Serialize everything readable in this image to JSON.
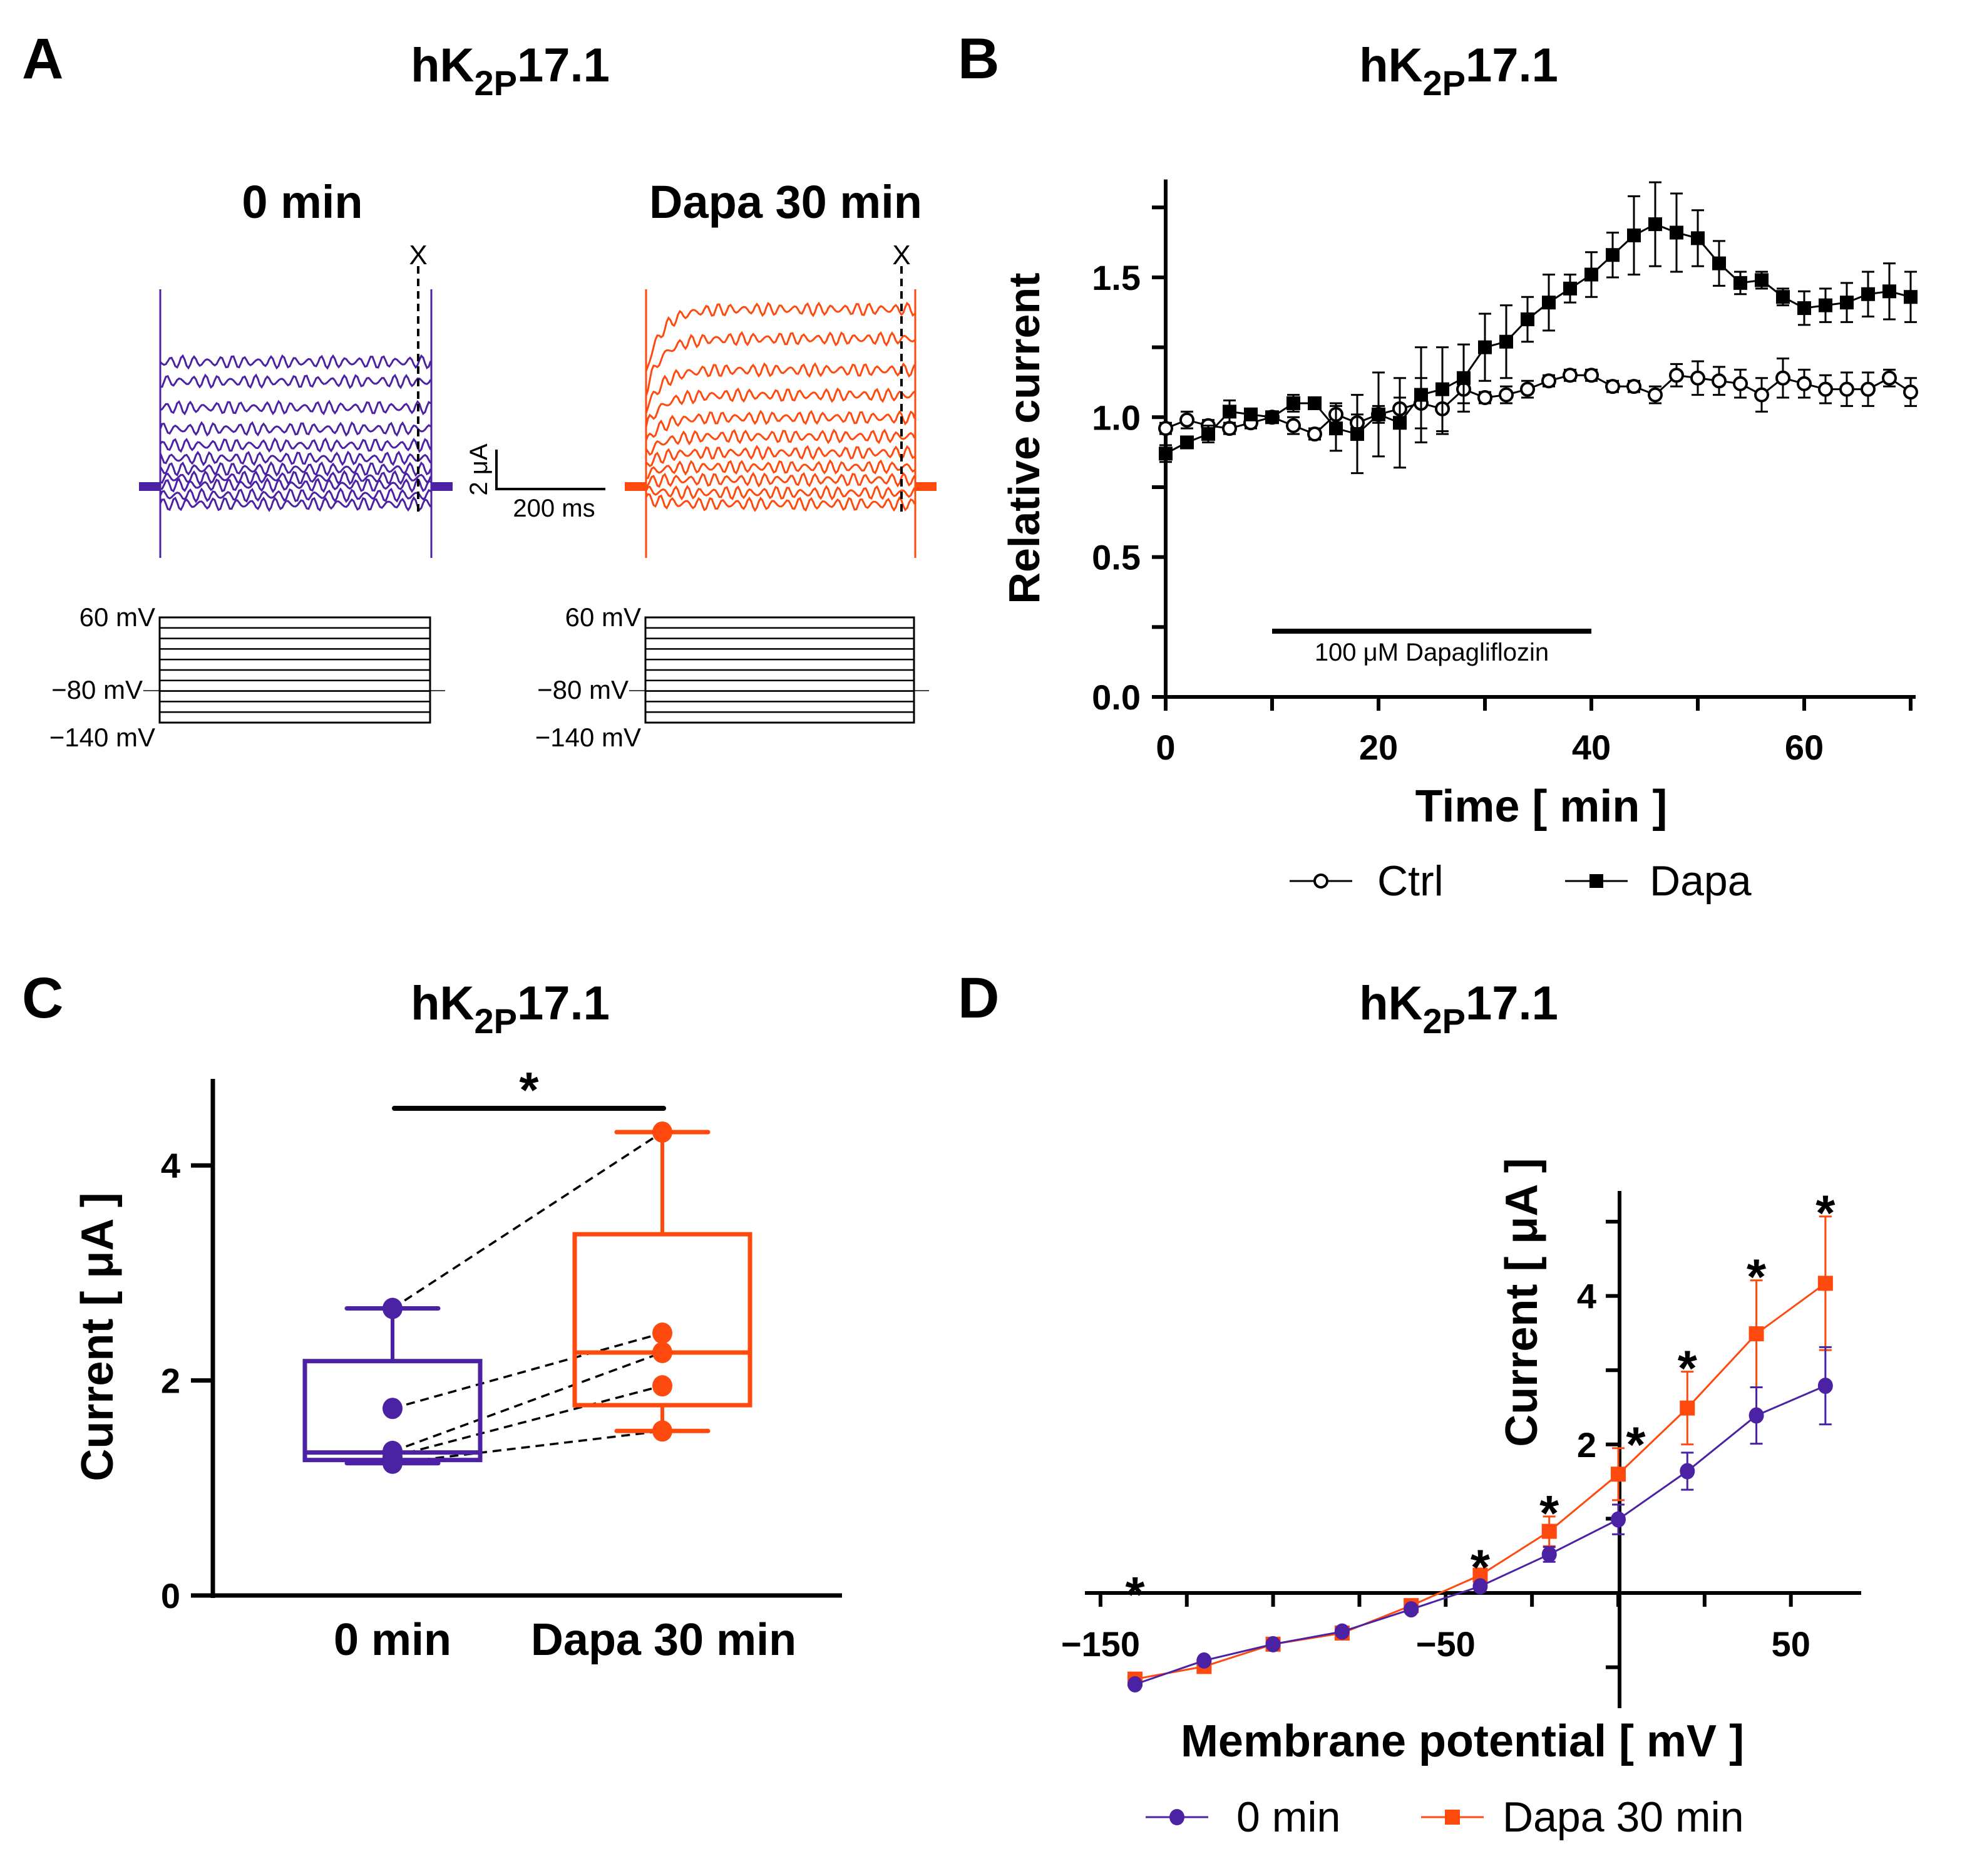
{
  "colors": {
    "purple": "#4b22a3",
    "orange": "#ff4a0f",
    "black": "#000000"
  },
  "title": {
    "main": "hK",
    "sub": "2P",
    "end": "17.1"
  },
  "panelA": {
    "letter": "A",
    "left_label": "0 min",
    "right_label": "Dapa 30 min",
    "marker": "X",
    "scale_y": "2 μA",
    "scale_x": "200 ms",
    "v_top": "60 mV",
    "v_hold": "−80 mV",
    "v_bottom": "−140 mV"
  },
  "panelB": {
    "letter": "B",
    "bar_label": "100 μM Dapagliflozin"
  },
  "panelC": {
    "letter": "C"
  },
  "panelD": {
    "letter": "D"
  },
  "chart_data": [
    {
      "type": "line",
      "xlabel": "Time [ min ]",
      "ylabel": "Relative current",
      "xlim": [
        0,
        70
      ],
      "ylim": [
        0,
        1.85
      ],
      "xticks": [
        0,
        20,
        40,
        60
      ],
      "yticks": [
        "0.0",
        "0.5",
        "1.0",
        "1.5"
      ],
      "legend": "bottom",
      "x": [
        0,
        2,
        4,
        6,
        8,
        10,
        12,
        14,
        16,
        18,
        20,
        22,
        24,
        26,
        28,
        30,
        32,
        34,
        36,
        38,
        40,
        42,
        44,
        46,
        48,
        50,
        52,
        54,
        56,
        58,
        60,
        62,
        64,
        66,
        68,
        70
      ],
      "series": [
        {
          "name": "Ctrl",
          "marker": "open-circle",
          "values": [
            0.96,
            0.99,
            0.97,
            0.96,
            0.98,
            1.0,
            0.97,
            0.94,
            1.01,
            0.98,
            1.01,
            1.03,
            1.05,
            1.03,
            1.1,
            1.07,
            1.08,
            1.1,
            1.13,
            1.15,
            1.15,
            1.11,
            1.11,
            1.08,
            1.15,
            1.14,
            1.13,
            1.12,
            1.08,
            1.14,
            1.12,
            1.1,
            1.1,
            1.1,
            1.14,
            1.09
          ],
          "errors": [
            0.02,
            0.03,
            0.02,
            0.02,
            0.02,
            0.01,
            0.03,
            0.02,
            0.04,
            0.03,
            0.03,
            0.04,
            0.09,
            0.09,
            0.05,
            0.02,
            0.03,
            0.03,
            0.02,
            0.02,
            0.02,
            0.02,
            0.02,
            0.03,
            0.04,
            0.06,
            0.05,
            0.05,
            0.06,
            0.07,
            0.05,
            0.05,
            0.06,
            0.06,
            0.03,
            0.05
          ]
        },
        {
          "name": "Dapa",
          "marker": "filled-square",
          "values": [
            0.87,
            0.91,
            0.94,
            1.02,
            1.01,
            1.0,
            1.05,
            1.05,
            0.96,
            0.94,
            1.01,
            0.98,
            1.08,
            1.1,
            1.14,
            1.25,
            1.27,
            1.35,
            1.41,
            1.46,
            1.51,
            1.58,
            1.65,
            1.69,
            1.66,
            1.64,
            1.55,
            1.48,
            1.49,
            1.43,
            1.39,
            1.4,
            1.41,
            1.44,
            1.45,
            1.43
          ],
          "errors": [
            0.03,
            0.02,
            0.03,
            0.04,
            0.02,
            0.01,
            0.03,
            0.02,
            0.08,
            0.14,
            0.15,
            0.16,
            0.17,
            0.15,
            0.12,
            0.12,
            0.13,
            0.08,
            0.1,
            0.05,
            0.08,
            0.08,
            0.14,
            0.15,
            0.14,
            0.1,
            0.08,
            0.04,
            0.03,
            0.03,
            0.06,
            0.06,
            0.07,
            0.08,
            0.1,
            0.09
          ]
        }
      ],
      "annotation": {
        "label": "100 μM Dapagliflozin",
        "from": 10,
        "to": 40
      }
    },
    {
      "type": "box",
      "ylabel": "Current [ μA ]",
      "ylim": [
        0,
        4.8
      ],
      "yticks": [
        0,
        2,
        4
      ],
      "categories": [
        "0 min",
        "Dapa 30 min"
      ],
      "points": [
        [
          2.67,
          1.74,
          1.34,
          1.29,
          1.23
        ],
        [
          4.31,
          2.44,
          2.26,
          1.95,
          1.53
        ]
      ],
      "boxes": [
        {
          "min": 1.23,
          "q1": 1.26,
          "median": 1.33,
          "q3": 2.18,
          "max": 2.67
        },
        {
          "min": 1.53,
          "q1": 1.77,
          "median": 2.26,
          "q3": 3.36,
          "max": 4.31
        }
      ],
      "paired": true,
      "significance": "*"
    },
    {
      "type": "line",
      "xlabel": "Membrane potential [ mV ]",
      "ylabel": "Current [ μA ]",
      "xlim": [
        -155,
        70
      ],
      "ylim": [
        -1.55,
        5.4
      ],
      "xticks": [
        -150,
        -50,
        50
      ],
      "yticks": [
        2,
        4
      ],
      "legend": "bottom",
      "x": [
        -140,
        -120,
        -100,
        -80,
        -60,
        -40,
        -20,
        0,
        20,
        40,
        60
      ],
      "series": [
        {
          "name": "0 min",
          "marker": "circle",
          "values": [
            -1.23,
            -0.91,
            -0.69,
            -0.52,
            -0.22,
            0.09,
            0.52,
            0.99,
            1.64,
            2.39,
            2.79
          ],
          "errors": [
            0.03,
            0.03,
            0.03,
            0.03,
            0.04,
            0.05,
            0.1,
            0.2,
            0.25,
            0.38,
            0.52
          ]
        },
        {
          "name": "Dapa 30 min",
          "marker": "square",
          "values": [
            -1.16,
            -0.99,
            -0.69,
            -0.54,
            -0.17,
            0.24,
            0.83,
            1.6,
            2.49,
            3.49,
            4.17
          ],
          "errors": [
            0.03,
            0.03,
            0.03,
            0.03,
            0.04,
            0.06,
            0.2,
            0.35,
            0.49,
            0.72,
            0.9
          ]
        }
      ],
      "significant_at": [
        -140,
        -40,
        -20,
        0,
        20,
        40,
        60
      ],
      "significance": "*"
    }
  ]
}
